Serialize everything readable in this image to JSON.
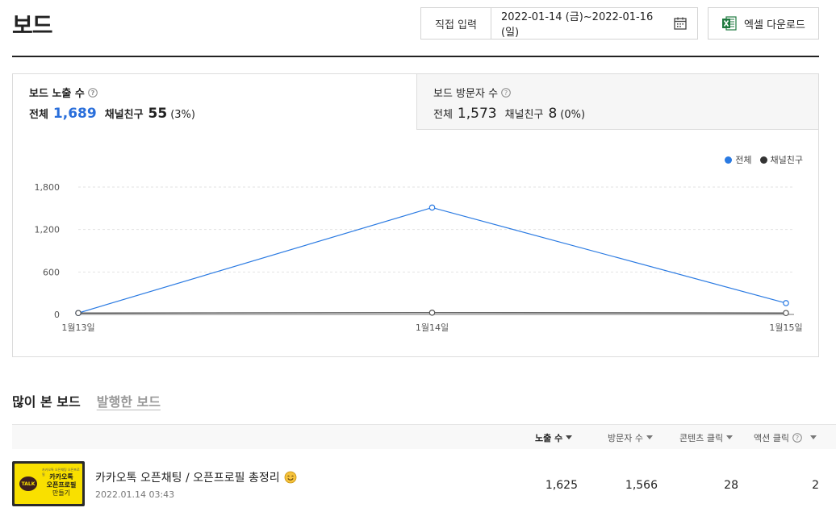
{
  "page": {
    "title": "보드"
  },
  "date_filter": {
    "mode_label": "직접 입력",
    "range": "2022-01-14 (금)~2022-01-16 (일)"
  },
  "excel_button": {
    "label": "엑셀 다운로드"
  },
  "stats": {
    "impressions": {
      "title": "보드 노출 수",
      "total_label": "전체",
      "total": "1,689",
      "friends_label": "채널친구",
      "friends": "55",
      "friends_pct": "(3%)"
    },
    "visitors": {
      "title": "보드 방문자 수",
      "total_label": "전체",
      "total": "1,573",
      "friends_label": "채널친구",
      "friends": "8",
      "friends_pct": "(0%)"
    }
  },
  "legend": {
    "total": "전체",
    "friends": "채널친구"
  },
  "colors": {
    "total": "#2a7ae2",
    "friends": "#333333",
    "accent": "#2a6fdb"
  },
  "chart_data": {
    "type": "line",
    "categories": [
      "1월13일",
      "1월14일",
      "1월15일"
    ],
    "series": [
      {
        "name": "전체",
        "values": [
          20,
          1510,
          160
        ]
      },
      {
        "name": "채널친구",
        "values": [
          20,
          25,
          20
        ]
      }
    ],
    "yticks": [
      "0",
      "600",
      "1,200",
      "1,800"
    ],
    "ylim": [
      0,
      1800
    ],
    "grid": true,
    "legend_position": "top-right"
  },
  "section_tabs": [
    {
      "label": "많이 본 보드",
      "active": true
    },
    {
      "label": "발행한 보드",
      "active": false
    }
  ],
  "table": {
    "columns": {
      "impressions": "노출 수",
      "visitors": "방문자 수",
      "content_clicks": "콘텐츠 클릭",
      "action_clicks": "액션 클릭"
    },
    "rows": [
      {
        "title": "카카오톡 오픈채팅 / 오픈프로필 총정리",
        "date": "2022.01.14 03:43",
        "impressions": "1,625",
        "visitors": "1,566",
        "content_clicks": "28",
        "action_clicks": "2",
        "thumb": {
          "badge": "TALK",
          "small_text": "카카오톡 오픈채팅 오픈프로필",
          "line1": "카카오톡",
          "line2": "오픈프로필",
          "line3": "만들기"
        }
      }
    ]
  }
}
